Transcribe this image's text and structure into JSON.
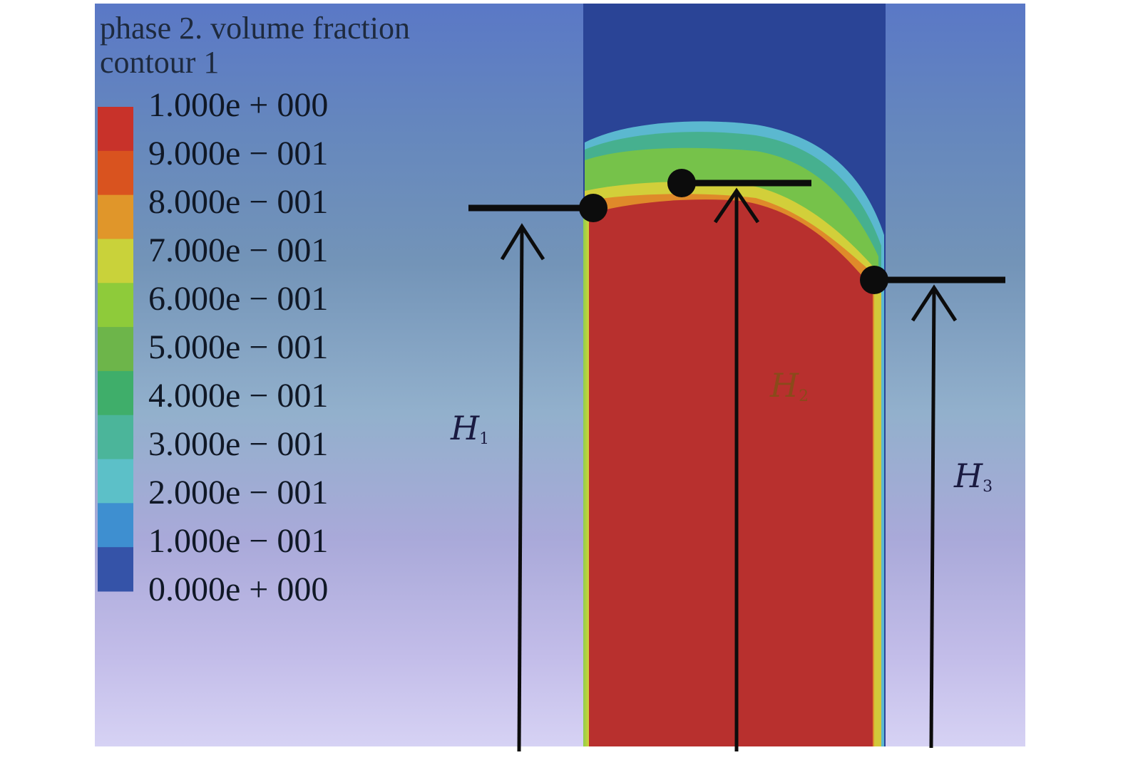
{
  "legend": {
    "title_line1": "phase 2. volume fraction",
    "title_line2": "contour 1",
    "levels": [
      "1.000e + 000",
      "9.000e − 001",
      "8.000e − 001",
      "7.000e − 001",
      "6.000e − 001",
      "5.000e − 001",
      "4.000e − 001",
      "3.000e − 001",
      "2.000e − 001",
      "1.000e − 001",
      "0.000e + 000"
    ],
    "band_colors": [
      "#c8322a",
      "#d9531f",
      "#e0962a",
      "#c9d23a",
      "#8ecb3a",
      "#6db54a",
      "#3fae6a",
      "#4bb59a",
      "#5cc0c8",
      "#3e8fd0",
      "#3553a8"
    ]
  },
  "annotations": {
    "h1": {
      "symbol": "H",
      "subscript": "1"
    },
    "h2": {
      "symbol": "H",
      "subscript": "2"
    },
    "h3": {
      "symbol": "H",
      "subscript": "3"
    }
  },
  "colors": {
    "liquid": "#b8302e",
    "column_top": "#2a4496",
    "background_top": "#5e7ec7",
    "background_bottom": "#d4d0f2",
    "annotation_line": "#0c0c0c",
    "h2_label": "#8a4a1a"
  }
}
